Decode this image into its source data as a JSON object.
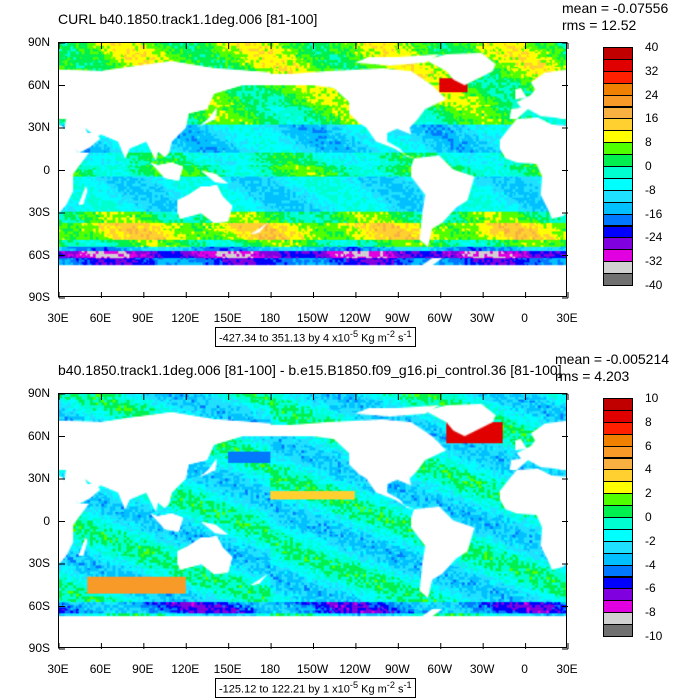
{
  "panels": [
    {
      "title": "CURL b40.1850.track1.1deg.006 [81-100]",
      "mean": "mean = -0.07556",
      "rms": "rms = 12.52",
      "range_text": "-427.34 to 351.13 by 4 x10",
      "range_exp": "-5",
      "range_units": " Kg m",
      "range_units_exp": "-2",
      "range_s": " s",
      "range_s_exp": "-1",
      "colorbar_labels": [
        "40",
        "32",
        "24",
        "16",
        "8",
        "0",
        "-8",
        "-16",
        "-24",
        "-32",
        "-40"
      ],
      "colorbar_min": -40,
      "colorbar_max": 40,
      "colorbar_step": 4,
      "field": "total"
    },
    {
      "title": "b40.1850.track1.1deg.006 [81-100] - b.e15.B1850.f09_g16.pi_control.36 [81-100]",
      "mean": "mean = -0.005214",
      "rms": "rms = 4.203",
      "range_text": "-125.12 to 122.21 by 1 x10",
      "range_exp": "-5",
      "range_units": " Kg m",
      "range_units_exp": "-2",
      "range_s": " s",
      "range_s_exp": "-1",
      "colorbar_labels": [
        "10",
        "8",
        "6",
        "4",
        "2",
        "0",
        "-2",
        "-4",
        "-6",
        "-8",
        "-10"
      ],
      "colorbar_min": -10,
      "colorbar_max": 10,
      "colorbar_step": 1,
      "field": "difference"
    }
  ],
  "lat_labels": [
    "90N",
    "60N",
    "30N",
    "0",
    "30S",
    "60S",
    "90S"
  ],
  "lon_labels": [
    "30E",
    "60E",
    "90E",
    "120E",
    "150E",
    "180",
    "150W",
    "120W",
    "90W",
    "60W",
    "30W",
    "0",
    "30E"
  ],
  "colors": [
    "#c00000",
    "#e00000",
    "#ff2000",
    "#f08000",
    "#f89a28",
    "#f8b040",
    "#ffd030",
    "#ffff00",
    "#50ff00",
    "#00f050",
    "#00ffd0",
    "#00ffff",
    "#20e0ff",
    "#00c0ff",
    "#0078ff",
    "#0000ff",
    "#8000e0",
    "#e000e0",
    "#d0d0d0",
    "#707070"
  ]
}
